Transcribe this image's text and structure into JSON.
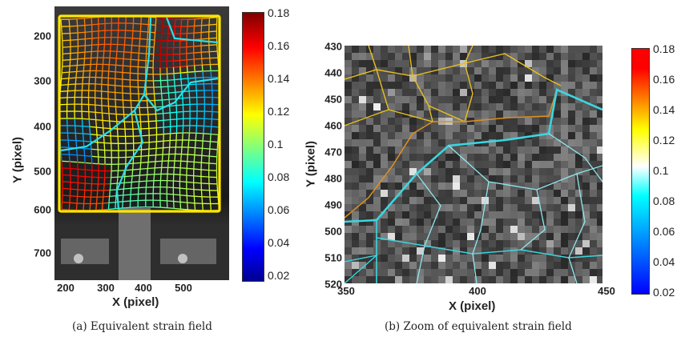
{
  "figure_a": {
    "caption": "(a) Equivalent strain field",
    "xlabel": "X (pixel)",
    "ylabel": "Y (pixel)",
    "xticks": [
      "200",
      "300",
      "400",
      "500"
    ],
    "yticks": [
      "200",
      "300",
      "400",
      "500",
      "600",
      "700"
    ],
    "colorbar_ticks": [
      "0.18",
      "0.16",
      "0.14",
      "0.12",
      "0.1",
      "0.08",
      "0.06",
      "0.04",
      "0.02"
    ]
  },
  "figure_b": {
    "caption": "(b) Zoom of equivalent strain field",
    "xlabel": "X (pixel)",
    "ylabel": "Y (pixel)",
    "xticks": [
      "350",
      "400",
      "450"
    ],
    "yticks": [
      "430",
      "440",
      "450",
      "460",
      "470",
      "480",
      "490",
      "500",
      "510",
      "520"
    ],
    "colorbar_ticks": [
      "0.18",
      "0.16",
      "0.14",
      "0.12",
      "0.1",
      "0.08",
      "0.06",
      "0.04",
      "0.02"
    ]
  },
  "colors": {
    "jet_low": "#00008f",
    "jet_high": "#800000",
    "frame_yellow": "#ffe600",
    "grain_cyan": "#2de0e8"
  }
}
